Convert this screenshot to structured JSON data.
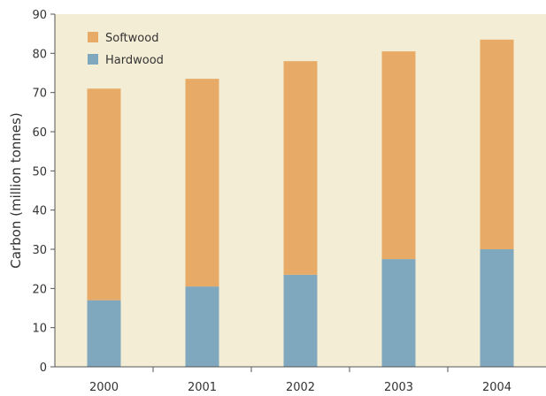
{
  "chart_data": {
    "type": "bar",
    "stacked": true,
    "title": "",
    "xlabel": "",
    "ylabel": "Carbon (million tonnes)",
    "categories": [
      "2000",
      "2001",
      "2002",
      "2003",
      "2004"
    ],
    "series": [
      {
        "name": "Hardwood",
        "color": "#7fa7bd",
        "values": [
          17,
          20.5,
          23.5,
          27.5,
          30
        ]
      },
      {
        "name": "Softwood",
        "color": "#e7aa67",
        "values": [
          54,
          53,
          54.5,
          53,
          53.5
        ]
      }
    ],
    "ylim": [
      0,
      90
    ],
    "yticks": [
      "0",
      "10",
      "20",
      "30",
      "40",
      "50",
      "60",
      "70",
      "80",
      "90"
    ],
    "grid": false,
    "legend_position": "top-left",
    "legend": [
      {
        "name": "Softwood",
        "color": "#e7aa67"
      },
      {
        "name": "Hardwood",
        "color": "#7fa7bd"
      }
    ],
    "plot_background": "#f3edd5"
  }
}
